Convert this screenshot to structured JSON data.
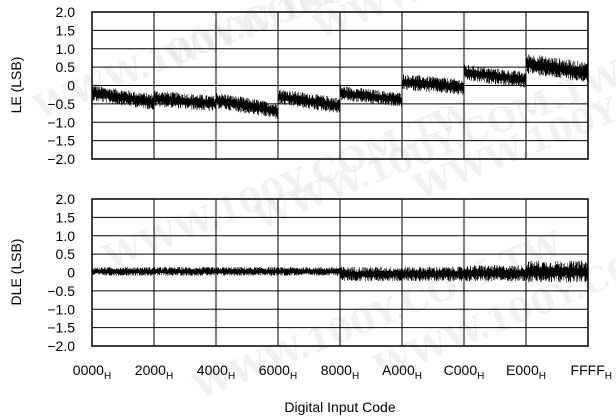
{
  "watermark": "WWW.100Y.COM.TW",
  "chart_data": [
    {
      "type": "line",
      "title": "",
      "xlabel": "",
      "ylabel": "LE (LSB)",
      "ylim": [
        -2.0,
        2.0
      ],
      "y_ticks": [
        "2.0",
        "1.5",
        "1.0",
        "0.5",
        "0",
        "−0.5",
        "−1.0",
        "−1.5",
        "−2.0"
      ],
      "grid": true,
      "series": [
        {
          "segments": [
            {
              "x": [
                0,
                8192
              ],
              "y": [
                -0.2,
                -0.45
              ],
              "noise": 0.22
            },
            {
              "x": [
                8192,
                16384
              ],
              "y": [
                -0.35,
                -0.5
              ],
              "noise": 0.22
            },
            {
              "x": [
                16384,
                24576
              ],
              "y": [
                -0.4,
                -0.7
              ],
              "noise": 0.22
            },
            {
              "x": [
                24576,
                32768
              ],
              "y": [
                -0.3,
                -0.55
              ],
              "noise": 0.22
            },
            {
              "x": [
                32768,
                40960
              ],
              "y": [
                -0.2,
                -0.4
              ],
              "noise": 0.2
            },
            {
              "x": [
                40960,
                49152
              ],
              "y": [
                0.1,
                -0.05
              ],
              "noise": 0.22
            },
            {
              "x": [
                49152,
                57344
              ],
              "y": [
                0.35,
                0.15
              ],
              "noise": 0.22
            },
            {
              "x": [
                57344,
                65535
              ],
              "y": [
                0.6,
                0.35
              ],
              "noise": 0.28
            }
          ]
        }
      ]
    },
    {
      "type": "line",
      "title": "",
      "xlabel": "Digital Input Code",
      "ylabel": "DLE (LSB)",
      "ylim": [
        -2.0,
        2.0
      ],
      "y_ticks": [
        "2.0",
        "1.5",
        "1.0",
        "0.5",
        "0",
        "−0.5",
        "−1.0",
        "−1.5",
        "−2.0"
      ],
      "x_ticks": [
        {
          "base": "0000",
          "sub": "H",
          "value": 0
        },
        {
          "base": "2000",
          "sub": "H",
          "value": 8192
        },
        {
          "base": "4000",
          "sub": "H",
          "value": 16384
        },
        {
          "base": "6000",
          "sub": "H",
          "value": 24576
        },
        {
          "base": "8000",
          "sub": "H",
          "value": 32768
        },
        {
          "base": "A000",
          "sub": "H",
          "value": 40960
        },
        {
          "base": "C000",
          "sub": "H",
          "value": 49152
        },
        {
          "base": "E000",
          "sub": "H",
          "value": 57344
        },
        {
          "base": "FFFF",
          "sub": "H",
          "value": 65535
        }
      ],
      "grid": true,
      "series": [
        {
          "segments": [
            {
              "x": [
                0,
                32768
              ],
              "y": [
                0.03,
                0.03
              ],
              "noise": 0.12
            },
            {
              "x": [
                32768,
                49152
              ],
              "y": [
                -0.04,
                -0.04
              ],
              "noise": 0.2
            },
            {
              "x": [
                49152,
                57344
              ],
              "y": [
                -0.02,
                -0.02
              ],
              "noise": 0.22
            },
            {
              "x": [
                57344,
                65535
              ],
              "y": [
                0.02,
                0.02
              ],
              "noise": 0.3
            }
          ]
        }
      ]
    }
  ]
}
